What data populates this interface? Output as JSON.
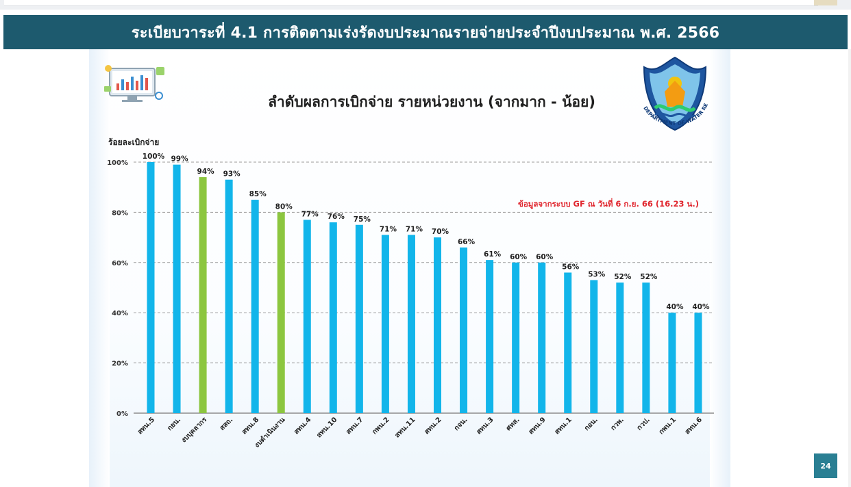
{
  "header": {
    "title": "ระเบียบวาระที่ 4.1 การติดตามเร่งรัดงบประมาณรายจ่ายประจำปีงบประมาณ พ.ศ. 2566"
  },
  "slide": {
    "title": "ลำดับผลการเบิกจ่าย รายหน่วยงาน (จากมาก - น้อย)",
    "page_number": "24",
    "logo_text": "DEPARTMENT OF WATER RESOURCES"
  },
  "chart_data": {
    "type": "bar",
    "ylabel": "ร้อยละเบิกจ่าย",
    "ylim": [
      0,
      100
    ],
    "yticks": [
      "0%",
      "20%",
      "40%",
      "60%",
      "80%",
      "100%"
    ],
    "grid": true,
    "note": "ข้อมูลจากระบบ GF ณ วันที่ 6 ก.ย. 66 (16.23 น.)",
    "colors": {
      "default": "#12b5ea",
      "highlight": "#8cc63f",
      "note": "#e0262e"
    },
    "categories": [
      "สทน.5",
      "กยน.",
      "งบบุคลากร",
      "สสถ.",
      "สทน.8",
      "งบดำเนินงาน",
      "สทน.4",
      "สทน.10",
      "สทน.7",
      "กพน.2",
      "สทน.11",
      "สทน.2",
      "กจน.",
      "สทน.3",
      "ศทส.",
      "สทน.9",
      "สทน.1",
      "กอน.",
      "กวพ.",
      "กวป.",
      "กพน.1",
      "สทน.6"
    ],
    "values": [
      100,
      99,
      94,
      93,
      85,
      80,
      77,
      76,
      75,
      71,
      71,
      70,
      66,
      61,
      60,
      60,
      56,
      53,
      52,
      52,
      40,
      40
    ],
    "labels": [
      "100%",
      "99%",
      "94%",
      "93%",
      "85%",
      "80%",
      "77%",
      "76%",
      "75%",
      "71%",
      "71%",
      "70%",
      "66%",
      "61%",
      "60%",
      "60%",
      "56%",
      "53%",
      "52%",
      "52%",
      "40%",
      "40%"
    ],
    "highlight": [
      false,
      false,
      true,
      false,
      false,
      true,
      false,
      false,
      false,
      false,
      false,
      false,
      false,
      false,
      false,
      false,
      false,
      false,
      false,
      false,
      false,
      false
    ]
  }
}
